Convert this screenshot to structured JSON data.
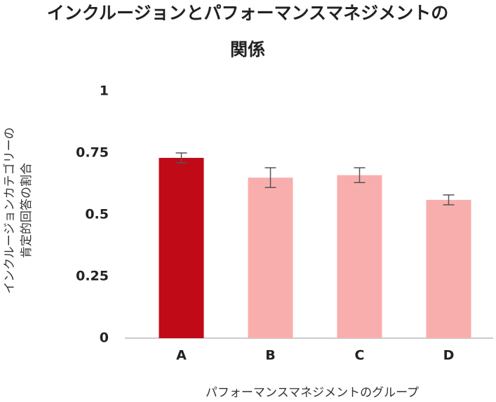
{
  "chart_data": {
    "type": "bar",
    "title": [
      "インクルージョンとパフォーマンスマネジメントの",
      "関係"
    ],
    "ylabel": [
      "インクルージョンカテゴリーの",
      "肯定的回答の割合"
    ],
    "xlabel": "パフォーマンスマネジメントのグループ",
    "categories": [
      "A",
      "B",
      "C",
      "D"
    ],
    "values": [
      0.73,
      0.65,
      0.66,
      0.56
    ],
    "errors": [
      0.02,
      0.04,
      0.03,
      0.02
    ],
    "colors": [
      "#c00a17",
      "#f9aeae",
      "#f9aeae",
      "#f9aeae"
    ],
    "ylim": [
      0,
      1
    ],
    "yticks": [
      0,
      0.25,
      0.5,
      0.75,
      1
    ],
    "grid": false
  }
}
